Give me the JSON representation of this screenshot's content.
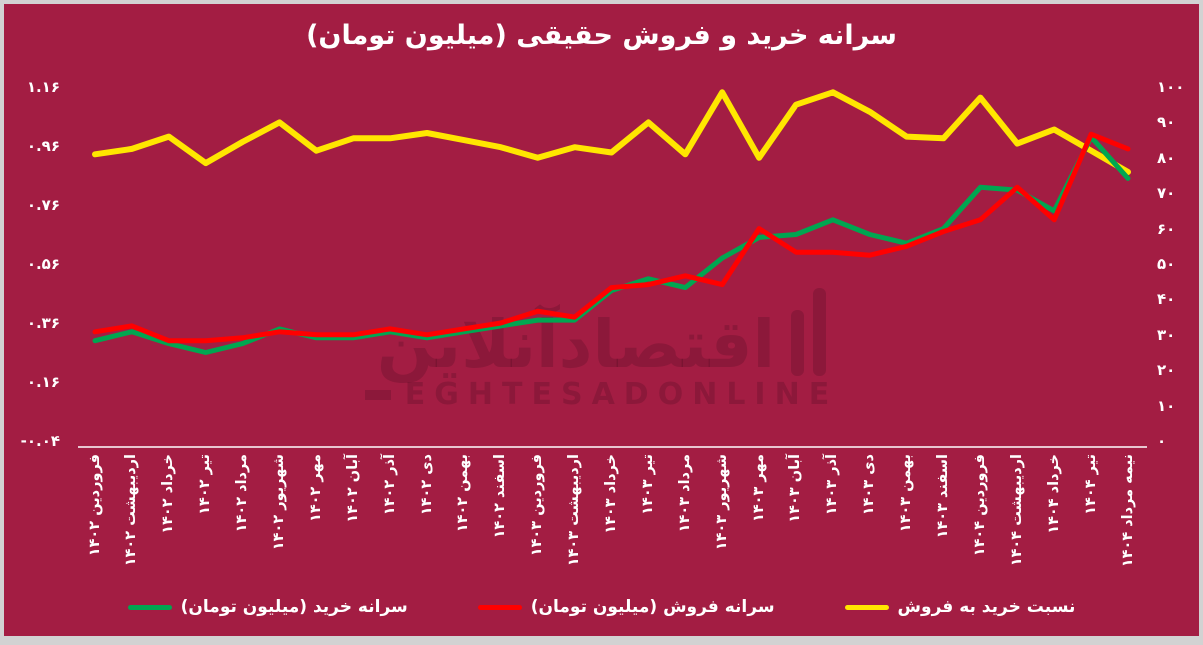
{
  "title": "سرانه خرید و فروش حقیقی (میلیون تومان)",
  "watermark": {
    "fa": "اقتصادآنلاین",
    "en": "EGHTESADONLINE"
  },
  "colors": {
    "background": "#a31d43",
    "frame": "#d2d2d2",
    "text": "#ffffff",
    "buy": "#00a651",
    "sell": "#ff0000",
    "ratio": "#ffe600"
  },
  "chart_data": {
    "type": "line",
    "title": "سرانه خرید و فروش حقیقی (میلیون تومان)",
    "grid": false,
    "legend_position": "bottom",
    "categories": [
      "فروردین ۱۴۰۲",
      "اردیبهشت ۱۴۰۲",
      "خرداد ۱۴۰۲",
      "تیر ۱۴۰۲",
      "مرداد ۱۴۰۲",
      "شهریور ۱۴۰۲",
      "مهر ۱۴۰۲",
      "آبان ۱۴۰۲",
      "آذر ۱۴۰۲",
      "دی ۱۴۰۲",
      "بهمن ۱۴۰۲",
      "اسفند ۱۴۰۲",
      "فروردین ۱۴۰۳",
      "اردیبهشت ۱۴۰۳",
      "خرداد ۱۴۰۳",
      "تیر ۱۴۰۳",
      "مرداد ۱۴۰۳",
      "شهریور ۱۴۰۳",
      "مهر ۱۴۰۳",
      "آبان ۱۴۰۳",
      "آذر ۱۴۰۳",
      "دی ۱۴۰۳",
      "بهمن ۱۴۰۳",
      "اسفند ۱۴۰۳",
      "فروردین ۱۴۰۴",
      "اردیبهشت ۱۴۰۴",
      "خرداد ۱۴۰۴",
      "تیر ۱۴۰۴",
      "نیمه مرداد ۱۴۰۴"
    ],
    "series": [
      {
        "key": "buy",
        "name": "سرانه خرید (میلیون تومان)",
        "axis": "left",
        "color": "#00a651",
        "values": [
          0.3,
          0.33,
          0.29,
          0.26,
          0.29,
          0.34,
          0.31,
          0.31,
          0.33,
          0.31,
          0.33,
          0.35,
          0.37,
          0.37,
          0.47,
          0.51,
          0.48,
          0.58,
          0.65,
          0.66,
          0.71,
          0.66,
          0.63,
          0.68,
          0.82,
          0.81,
          0.74,
          0.99,
          0.85
        ]
      },
      {
        "key": "sell",
        "name": "سرانه فروش (میلیون تومان)",
        "axis": "left",
        "color": "#ff0000",
        "values": [
          0.33,
          0.35,
          0.3,
          0.3,
          0.31,
          0.33,
          0.32,
          0.32,
          0.34,
          0.32,
          0.34,
          0.36,
          0.4,
          0.38,
          0.48,
          0.49,
          0.52,
          0.49,
          0.68,
          0.6,
          0.6,
          0.59,
          0.62,
          0.67,
          0.71,
          0.82,
          0.71,
          1.0,
          0.95
        ]
      },
      {
        "key": "ratio",
        "name": "نسبت خرید به فروش",
        "axis": "right",
        "color": "#ffe600",
        "values": [
          81,
          82.5,
          86,
          78.5,
          84.5,
          90,
          82,
          85.5,
          85.5,
          87,
          85,
          83,
          80,
          83,
          81.5,
          90,
          81,
          98.5,
          80,
          95,
          98.5,
          93,
          86,
          85.5,
          97,
          84,
          88,
          82,
          76
        ]
      }
    ],
    "left_axis_ticks": [
      {
        "label": "۱.۱۶",
        "value": 1.16
      },
      {
        "label": "۰.۹۶",
        "value": 0.96
      },
      {
        "label": "۰.۷۶",
        "value": 0.76
      },
      {
        "label": "۰.۵۶",
        "value": 0.56
      },
      {
        "label": "۰.۳۶",
        "value": 0.36
      },
      {
        "label": "۰.۱۶",
        "value": 0.16
      },
      {
        "label": "-۰.۰۴",
        "value": -0.04
      }
    ],
    "right_axis_ticks": [
      {
        "label": "۱۰۰",
        "value": 100
      },
      {
        "label": "۹۰",
        "value": 90
      },
      {
        "label": "۸۰",
        "value": 80
      },
      {
        "label": "۷۰",
        "value": 70
      },
      {
        "label": "۶۰",
        "value": 60
      },
      {
        "label": "۵۰",
        "value": 50
      },
      {
        "label": "۴۰",
        "value": 40
      },
      {
        "label": "۳۰",
        "value": 30
      },
      {
        "label": "۲۰",
        "value": 20
      },
      {
        "label": "۱۰",
        "value": 10
      },
      {
        "label": "۰",
        "value": 0
      }
    ],
    "ylim_left": [
      -0.04,
      1.16
    ],
    "ylim_right": [
      0,
      100
    ]
  }
}
